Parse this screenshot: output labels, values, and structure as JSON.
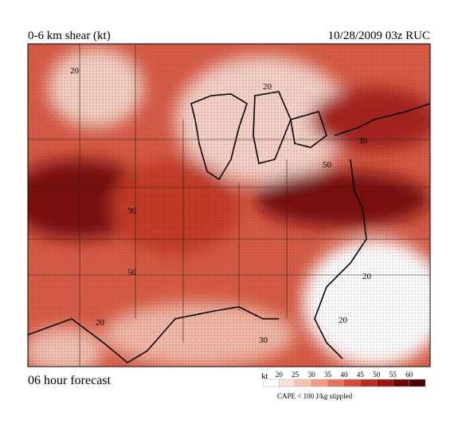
{
  "header": {
    "title": "0-6 km shear (kt)",
    "valid": "10/28/2009  03z  RUC"
  },
  "map": {
    "contour_labels": [
      "20",
      "20",
      "30",
      "30",
      "50",
      "50",
      "20",
      "20",
      "30",
      "20"
    ]
  },
  "footer": {
    "forecast": "06 hour forecast"
  },
  "legend": {
    "unit": "kt",
    "levels": [
      20,
      25,
      30,
      35,
      40,
      45,
      50,
      55,
      60
    ],
    "colors": [
      "#ffffff",
      "#fde0d6",
      "#f9c2ad",
      "#f39c80",
      "#e8735a",
      "#d84a35",
      "#bf2a1c",
      "#9c1410",
      "#6e0606",
      "#4a0000"
    ],
    "note": "CAPE < 100 J/kg stippled"
  }
}
